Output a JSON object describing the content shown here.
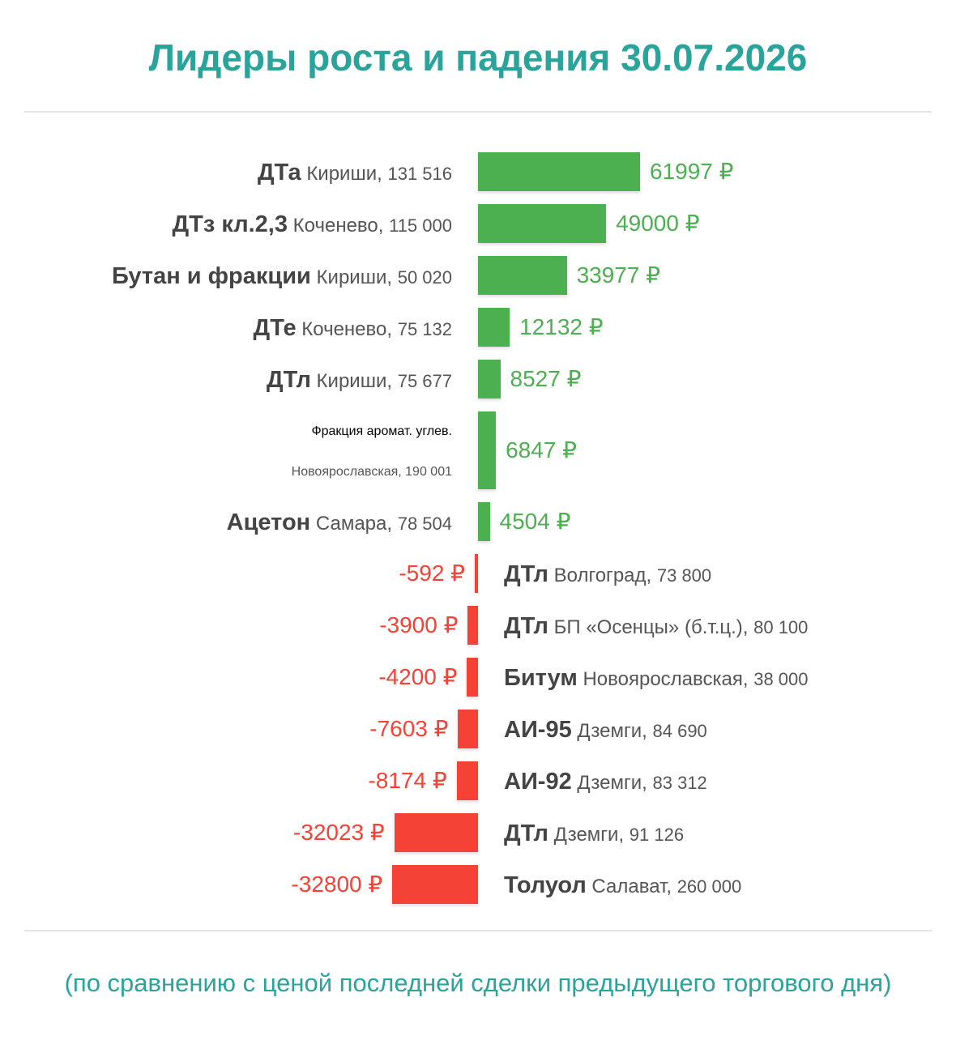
{
  "title": "Лидеры роста и падения 30.07.2026",
  "footnote": "(по сравнению с ценой последней сделки предыдущего торгового дня)",
  "colors": {
    "positive": "#4caf50",
    "negative": "#f44336",
    "accent": "#2aa39b"
  },
  "chart_data": {
    "type": "bar",
    "orientation": "horizontal",
    "unit": "₽",
    "items": [
      {
        "product": "ДТа",
        "location": "Кириши",
        "volume": "131 516",
        "value": 61997,
        "value_label": "61997 ₽"
      },
      {
        "product": "ДТз кл.2,3",
        "location": "Коченево",
        "volume": "115 000",
        "value": 49000,
        "value_label": "49000 ₽"
      },
      {
        "product": "Бутан и фракции",
        "location": "Кириши",
        "volume": "50 020",
        "value": 33977,
        "value_label": "33977 ₽"
      },
      {
        "product": "ДТе",
        "location": "Коченево",
        "volume": "75 132",
        "value": 12132,
        "value_label": "12132 ₽"
      },
      {
        "product": "ДТл",
        "location": "Кириши",
        "volume": "75 677",
        "value": 8527,
        "value_label": "8527 ₽"
      },
      {
        "product": "Фракция аромат. углев.",
        "location": "Новоярославская",
        "volume": "190 001",
        "value": 6847,
        "value_label": "6847 ₽"
      },
      {
        "product": "Ацетон",
        "location": "Самара",
        "volume": "78 504",
        "value": 4504,
        "value_label": "4504 ₽"
      },
      {
        "product": "ДТл",
        "location": "Волгоград",
        "volume": "73 800",
        "value": -592,
        "value_label": "-592 ₽"
      },
      {
        "product": "ДТл",
        "location": "БП «Осенцы» (б.т.ц.)",
        "volume": "80 100",
        "value": -3900,
        "value_label": "-3900 ₽"
      },
      {
        "product": "Битум",
        "location": "Новоярославская",
        "volume": "38 000",
        "value": -4200,
        "value_label": "-4200 ₽"
      },
      {
        "product": "АИ-95",
        "location": "Дземги",
        "volume": "84 690",
        "value": -7603,
        "value_label": "-7603 ₽"
      },
      {
        "product": "АИ-92",
        "location": "Дземги",
        "volume": "83 312",
        "value": -8174,
        "value_label": "-8174 ₽"
      },
      {
        "product": "ДТл",
        "location": "Дземги",
        "volume": "91 126",
        "value": -32023,
        "value_label": "-32023 ₽"
      },
      {
        "product": "Толуол",
        "location": "Салават",
        "volume": "260 000",
        "value": -32800,
        "value_label": "-32800 ₽"
      }
    ]
  }
}
